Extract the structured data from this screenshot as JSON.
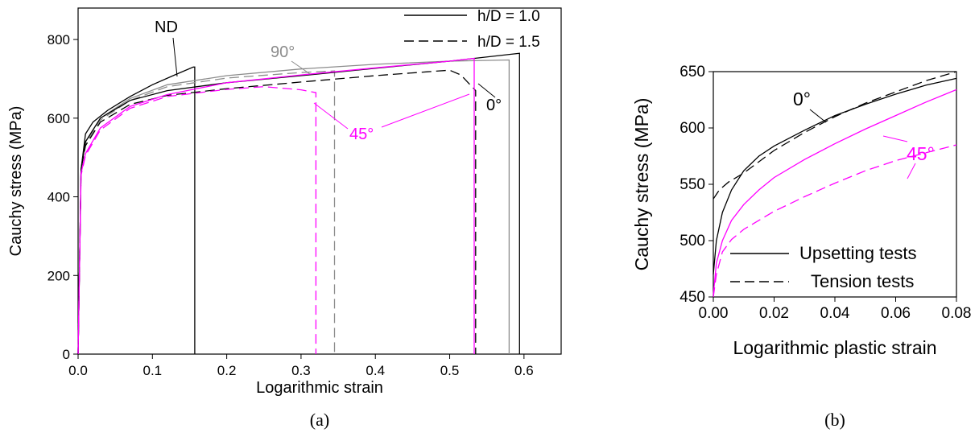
{
  "colors": {
    "black": "#000000",
    "gray": "#8c8c8c",
    "magenta": "#ff00ff"
  },
  "figure_a": {
    "caption": "(a)"
  },
  "figure_b": {
    "caption": "(b)"
  },
  "chart_data": [
    {
      "type": "line",
      "xlabel": "Logarithmic strain",
      "ylabel": "Cauchy stress (MPa)",
      "xlim": [
        0,
        0.65
      ],
      "ylim": [
        0,
        880
      ],
      "xticks": [
        "0.0",
        "0.1",
        "0.2",
        "0.3",
        "0.4",
        "0.5",
        "0.6"
      ],
      "yticks": [
        "0",
        "200",
        "400",
        "600",
        "800"
      ],
      "legend_position": "top-right",
      "legend": [
        {
          "label": "h/D = 1.0",
          "style": "solid"
        },
        {
          "label": "h/D = 1.5",
          "style": "dashed"
        }
      ],
      "annotations": [
        {
          "text": "ND",
          "color": "black"
        },
        {
          "text": "90°",
          "color": "gray"
        },
        {
          "text": "45°",
          "color": "magenta"
        },
        {
          "text": "0°",
          "color": "black"
        }
      ],
      "series": [
        {
          "group": "ND",
          "style": "solid",
          "color": "black",
          "points": [
            [
              0,
              0
            ],
            [
              0.004,
              470
            ],
            [
              0.01,
              560
            ],
            [
              0.02,
              590
            ],
            [
              0.04,
              620
            ],
            [
              0.07,
              655
            ],
            [
              0.1,
              685
            ],
            [
              0.13,
              710
            ],
            [
              0.155,
              730
            ],
            [
              0.157,
              730
            ],
            [
              0.157,
              0
            ]
          ]
        },
        {
          "group": "90°",
          "style": "solid",
          "color": "gray",
          "points": [
            [
              0,
              0
            ],
            [
              0.004,
              470
            ],
            [
              0.01,
              540
            ],
            [
              0.03,
              600
            ],
            [
              0.07,
              650
            ],
            [
              0.12,
              685
            ],
            [
              0.2,
              708
            ],
            [
              0.3,
              725
            ],
            [
              0.4,
              737
            ],
            [
              0.5,
              745
            ],
            [
              0.58,
              748
            ],
            [
              0.58,
              0
            ]
          ]
        },
        {
          "group": "90°",
          "style": "dashed",
          "color": "gray",
          "points": [
            [
              0,
              0
            ],
            [
              0.004,
              470
            ],
            [
              0.01,
              535
            ],
            [
              0.03,
              595
            ],
            [
              0.07,
              645
            ],
            [
              0.12,
              680
            ],
            [
              0.2,
              702
            ],
            [
              0.3,
              716
            ],
            [
              0.345,
              720
            ],
            [
              0.345,
              0
            ]
          ]
        },
        {
          "group": "0°",
          "style": "solid",
          "color": "black",
          "points": [
            [
              0,
              0
            ],
            [
              0.004,
              470
            ],
            [
              0.01,
              540
            ],
            [
              0.03,
              600
            ],
            [
              0.07,
              645
            ],
            [
              0.12,
              670
            ],
            [
              0.2,
              690
            ],
            [
              0.3,
              708
            ],
            [
              0.4,
              727
            ],
            [
              0.5,
              745
            ],
            [
              0.594,
              765
            ],
            [
              0.594,
              0
            ]
          ]
        },
        {
          "group": "0°",
          "style": "dashed",
          "color": "black",
          "points": [
            [
              0,
              0
            ],
            [
              0.004,
              470
            ],
            [
              0.01,
              530
            ],
            [
              0.03,
              590
            ],
            [
              0.07,
              635
            ],
            [
              0.12,
              658
            ],
            [
              0.2,
              675
            ],
            [
              0.3,
              692
            ],
            [
              0.4,
              708
            ],
            [
              0.47,
              718
            ],
            [
              0.5,
              722
            ],
            [
              0.515,
              710
            ],
            [
              0.535,
              670
            ],
            [
              0.535,
              0
            ]
          ]
        },
        {
          "group": "45°",
          "style": "solid",
          "color": "magenta",
          "points": [
            [
              0,
              0
            ],
            [
              0.004,
              460
            ],
            [
              0.01,
              510
            ],
            [
              0.03,
              575
            ],
            [
              0.07,
              630
            ],
            [
              0.12,
              660
            ],
            [
              0.2,
              690
            ],
            [
              0.3,
              710
            ],
            [
              0.4,
              728
            ],
            [
              0.5,
              745
            ],
            [
              0.533,
              752
            ],
            [
              0.533,
              0
            ]
          ]
        },
        {
          "group": "45°",
          "style": "dashed",
          "color": "magenta",
          "points": [
            [
              0,
              0
            ],
            [
              0.004,
              455
            ],
            [
              0.01,
              505
            ],
            [
              0.03,
              570
            ],
            [
              0.07,
              625
            ],
            [
              0.12,
              655
            ],
            [
              0.2,
              673
            ],
            [
              0.25,
              680
            ],
            [
              0.3,
              672
            ],
            [
              0.32,
              665
            ],
            [
              0.32,
              0
            ]
          ]
        }
      ]
    },
    {
      "type": "line",
      "xlabel": "Logarithmic plastic strain",
      "ylabel": "Cauchy stress (MPa)",
      "xlim": [
        0,
        0.08
      ],
      "ylim": [
        450,
        650
      ],
      "xticks": [
        "0.00",
        "0.02",
        "0.04",
        "0.06",
        "0.08"
      ],
      "yticks": [
        "450",
        "500",
        "550",
        "600",
        "650"
      ],
      "legend_position": "bottom-right",
      "legend": [
        {
          "label": "Upsetting tests",
          "style": "solid"
        },
        {
          "label": "Tension tests",
          "style": "dashed"
        }
      ],
      "annotations": [
        {
          "text": "0°",
          "color": "black"
        },
        {
          "text": "45°",
          "color": "magenta"
        }
      ],
      "series": [
        {
          "group": "0°",
          "style": "solid",
          "color": "black",
          "points": [
            [
              0,
              470
            ],
            [
              0.001,
              500
            ],
            [
              0.003,
              525
            ],
            [
              0.006,
              545
            ],
            [
              0.01,
              562
            ],
            [
              0.015,
              575
            ],
            [
              0.02,
              584
            ],
            [
              0.03,
              598
            ],
            [
              0.04,
              611
            ],
            [
              0.05,
              621
            ],
            [
              0.06,
              630
            ],
            [
              0.07,
              638
            ],
            [
              0.08,
              644
            ]
          ]
        },
        {
          "group": "0°",
          "style": "dashed",
          "color": "black",
          "points": [
            [
              0,
              537
            ],
            [
              0.002,
              545
            ],
            [
              0.005,
              552
            ],
            [
              0.01,
              560
            ],
            [
              0.015,
              570
            ],
            [
              0.02,
              580
            ],
            [
              0.03,
              596
            ],
            [
              0.04,
              610
            ],
            [
              0.05,
              622
            ],
            [
              0.06,
              632
            ],
            [
              0.07,
              642
            ],
            [
              0.08,
              650
            ]
          ]
        },
        {
          "group": "45°",
          "style": "solid",
          "color": "magenta",
          "points": [
            [
              0,
              452
            ],
            [
              0.001,
              480
            ],
            [
              0.003,
              500
            ],
            [
              0.006,
              518
            ],
            [
              0.01,
              532
            ],
            [
              0.015,
              545
            ],
            [
              0.02,
              556
            ],
            [
              0.03,
              572
            ],
            [
              0.04,
              586
            ],
            [
              0.05,
              599
            ],
            [
              0.06,
              611
            ],
            [
              0.07,
              623
            ],
            [
              0.08,
              634
            ]
          ]
        },
        {
          "group": "45°",
          "style": "dashed",
          "color": "magenta",
          "points": [
            [
              0,
              450
            ],
            [
              0.001,
              470
            ],
            [
              0.003,
              490
            ],
            [
              0.006,
              501
            ],
            [
              0.01,
              510
            ],
            [
              0.015,
              518
            ],
            [
              0.02,
              526
            ],
            [
              0.03,
              539
            ],
            [
              0.04,
              551
            ],
            [
              0.05,
              562
            ],
            [
              0.06,
              571
            ],
            [
              0.07,
              578
            ],
            [
              0.08,
              585
            ]
          ]
        }
      ]
    }
  ]
}
